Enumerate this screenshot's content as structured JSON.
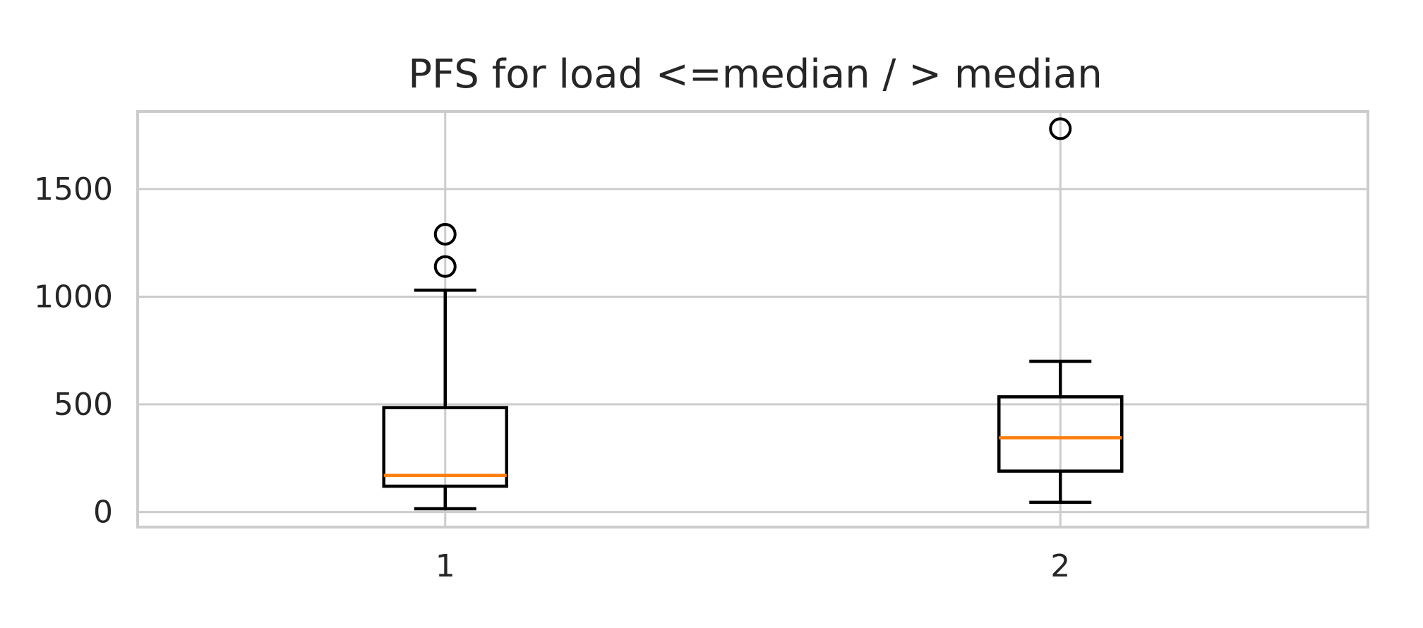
{
  "chart_data": {
    "type": "box",
    "title": "PFS for load <=median / > median",
    "xlabel": "",
    "ylabel": "",
    "categories": [
      "1",
      "2"
    ],
    "ylim": [
      -70,
      1860
    ],
    "yticks": [
      0,
      500,
      1000,
      1500
    ],
    "grid": true,
    "median_color": "#ff7f0e",
    "boxes": [
      {
        "label": "1",
        "whisker_low": 15,
        "q1": 120,
        "median": 170,
        "q3": 485,
        "whisker_high": 1030,
        "fliers": [
          1290,
          1140
        ]
      },
      {
        "label": "2",
        "whisker_low": 45,
        "q1": 190,
        "median": 345,
        "q3": 535,
        "whisker_high": 700,
        "fliers": [
          1780
        ]
      }
    ]
  }
}
